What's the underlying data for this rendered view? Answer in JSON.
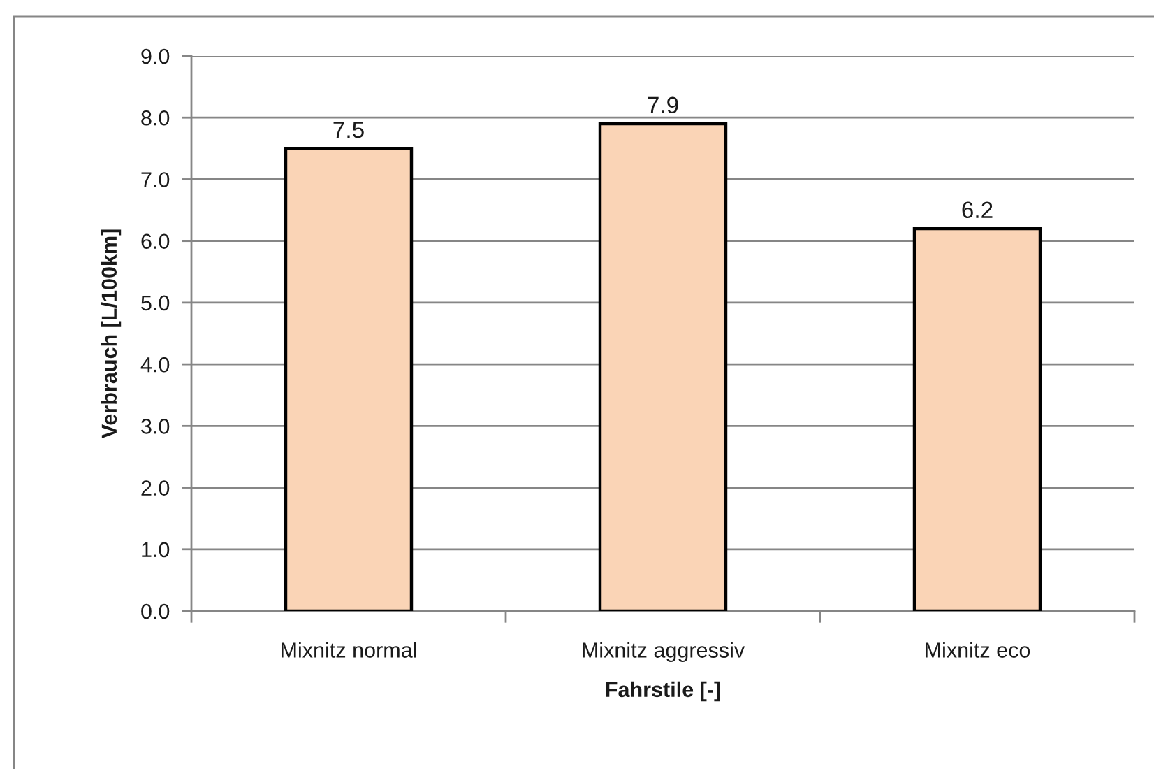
{
  "chart_data": {
    "type": "bar",
    "xlabel": "Fahrstile [-]",
    "ylabel": "Verbrauch [L/100km]",
    "categories": [
      "Mixnitz normal",
      "Mixnitz aggressiv",
      "Mixnitz eco"
    ],
    "values": [
      7.5,
      7.9,
      6.2
    ],
    "color": "#fad4b6",
    "ylim": [
      0,
      9
    ],
    "yticks": [
      {
        "value": 0,
        "label": "0.0"
      },
      {
        "value": 1,
        "label": "1.0"
      },
      {
        "value": 2,
        "label": "2.0"
      },
      {
        "value": 3,
        "label": "3.0"
      },
      {
        "value": 4,
        "label": "4.0"
      },
      {
        "value": 5,
        "label": "5.0"
      },
      {
        "value": 6,
        "label": "6.0"
      },
      {
        "value": 7,
        "label": "7.0"
      },
      {
        "value": 8,
        "label": "8.0"
      },
      {
        "value": 9,
        "label": "9.0"
      }
    ],
    "grid": "y",
    "data_labels": true
  }
}
